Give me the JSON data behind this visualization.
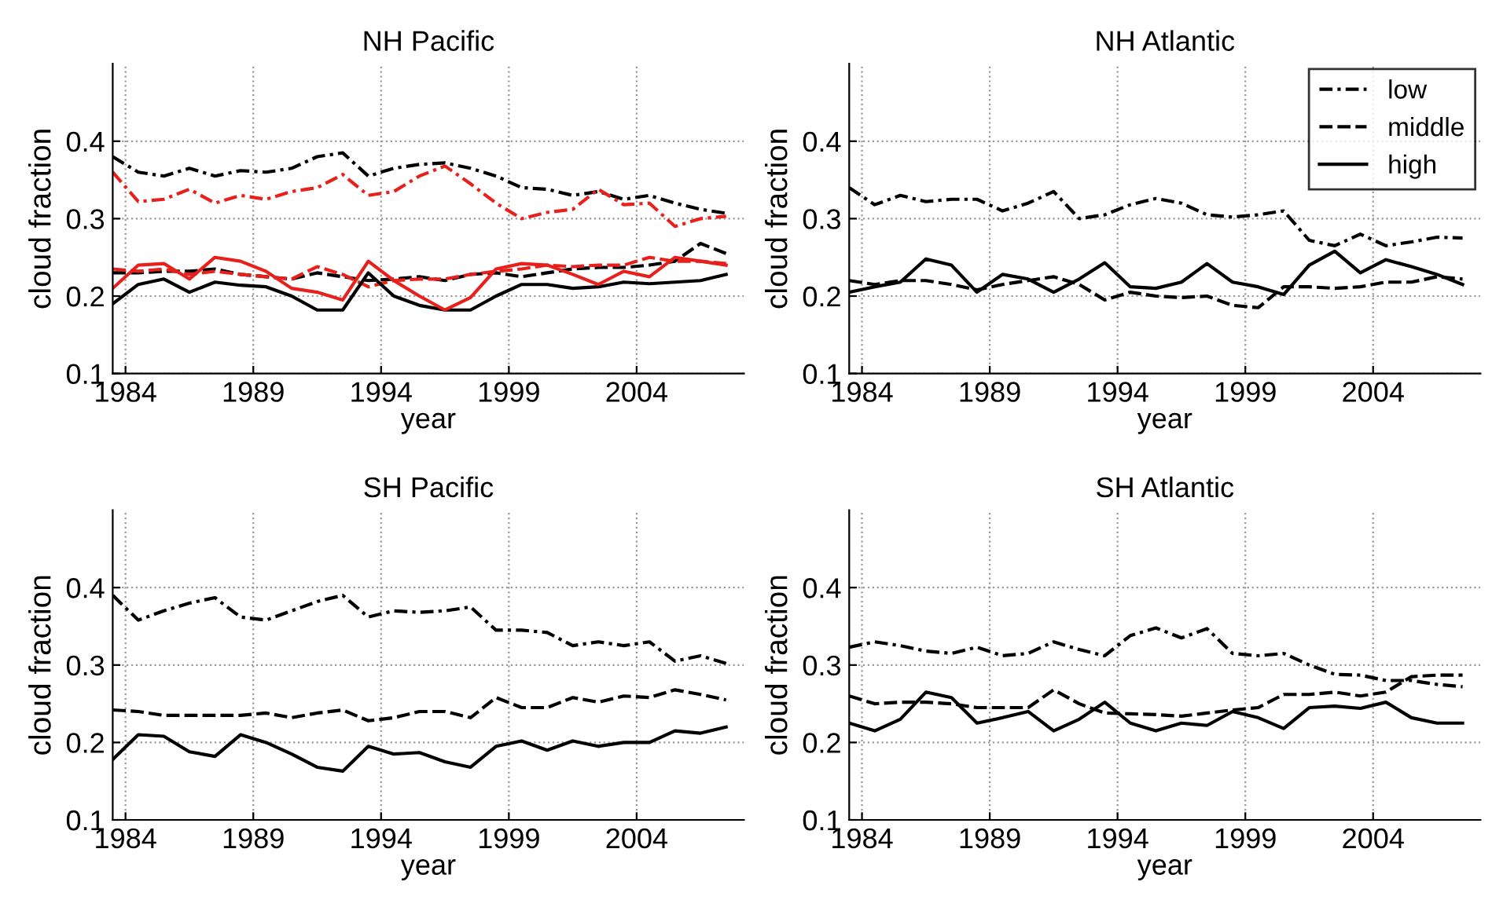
{
  "chart_data": [
    {
      "type": "line",
      "title": "NH Pacific",
      "xlabel": "year",
      "ylabel": "cloud fraction",
      "x": [
        1983.5,
        1984.5,
        1985.5,
        1986.5,
        1987.5,
        1988.5,
        1989.5,
        1990.5,
        1991.5,
        1992.5,
        1993.5,
        1994.5,
        1995.5,
        1996.5,
        1997.5,
        1998.5,
        1999.5,
        2000.5,
        2001.5,
        2002.5,
        2003.5,
        2004.5,
        2005.5,
        2006.5,
        2007.5
      ],
      "xlim": [
        1983.5,
        2008.2
      ],
      "xticks": [
        1984,
        1989,
        1994,
        1999,
        2004
      ],
      "ylim": [
        0.1,
        0.5
      ],
      "yticks": [
        0.1,
        0.2,
        0.3,
        0.4
      ],
      "grid": true,
      "legend": false,
      "series": [
        {
          "color": "#000000",
          "line_style": "dashdot",
          "values": [
            0.38,
            0.36,
            0.355,
            0.365,
            0.355,
            0.362,
            0.36,
            0.365,
            0.38,
            0.385,
            0.355,
            0.365,
            0.37,
            0.372,
            0.365,
            0.355,
            0.34,
            0.338,
            0.33,
            0.335,
            0.325,
            0.33,
            0.32,
            0.312,
            0.307
          ]
        },
        {
          "color": "#e8201c",
          "line_style": "dashdot",
          "values": [
            0.36,
            0.322,
            0.325,
            0.338,
            0.32,
            0.33,
            0.325,
            0.335,
            0.34,
            0.357,
            0.33,
            0.335,
            0.355,
            0.368,
            0.345,
            0.32,
            0.3,
            0.308,
            0.312,
            0.338,
            0.318,
            0.32,
            0.29,
            0.3,
            0.303
          ]
        },
        {
          "color": "#000000",
          "line_style": "dashed",
          "values": [
            0.23,
            0.23,
            0.232,
            0.232,
            0.235,
            0.228,
            0.225,
            0.222,
            0.23,
            0.225,
            0.22,
            0.222,
            0.225,
            0.22,
            0.228,
            0.23,
            0.225,
            0.23,
            0.235,
            0.237,
            0.237,
            0.24,
            0.245,
            0.268,
            0.255
          ]
        },
        {
          "color": "#e8201c",
          "line_style": "dashed",
          "values": [
            0.235,
            0.232,
            0.235,
            0.228,
            0.232,
            0.228,
            0.225,
            0.222,
            0.238,
            0.228,
            0.212,
            0.22,
            0.222,
            0.222,
            0.228,
            0.232,
            0.235,
            0.24,
            0.238,
            0.24,
            0.24,
            0.25,
            0.245,
            0.245,
            0.242
          ]
        },
        {
          "color": "#000000",
          "line_style": "solid",
          "values": [
            0.19,
            0.215,
            0.222,
            0.205,
            0.218,
            0.214,
            0.212,
            0.2,
            0.182,
            0.182,
            0.23,
            0.2,
            0.188,
            0.182,
            0.182,
            0.2,
            0.215,
            0.215,
            0.21,
            0.212,
            0.218,
            0.216,
            0.218,
            0.22,
            0.228
          ]
        },
        {
          "color": "#e8201c",
          "line_style": "solid",
          "values": [
            0.21,
            0.24,
            0.242,
            0.222,
            0.25,
            0.245,
            0.232,
            0.21,
            0.205,
            0.195,
            0.245,
            0.22,
            0.2,
            0.182,
            0.198,
            0.235,
            0.242,
            0.24,
            0.228,
            0.215,
            0.232,
            0.225,
            0.25,
            0.245,
            0.24
          ]
        }
      ]
    },
    {
      "type": "line",
      "title": "NH Atlantic",
      "xlabel": "year",
      "ylabel": "cloud fraction",
      "x": [
        1983.5,
        1984.5,
        1985.5,
        1986.5,
        1987.5,
        1988.5,
        1989.5,
        1990.5,
        1991.5,
        1992.5,
        1993.5,
        1994.5,
        1995.5,
        1996.5,
        1997.5,
        1998.5,
        1999.5,
        2000.5,
        2001.5,
        2002.5,
        2003.5,
        2004.5,
        2005.5,
        2006.5,
        2007.5
      ],
      "xlim": [
        1983.5,
        2008.2
      ],
      "xticks": [
        1984,
        1989,
        1994,
        1999,
        2004
      ],
      "ylim": [
        0.1,
        0.5
      ],
      "yticks": [
        0.1,
        0.2,
        0.3,
        0.4
      ],
      "grid": true,
      "legend": "top right",
      "series": [
        {
          "name": "low",
          "color": "#000000",
          "line_style": "dashdot",
          "values": [
            0.34,
            0.318,
            0.33,
            0.322,
            0.325,
            0.325,
            0.31,
            0.32,
            0.335,
            0.3,
            0.305,
            0.318,
            0.326,
            0.32,
            0.305,
            0.302,
            0.305,
            0.31,
            0.272,
            0.265,
            0.28,
            0.265,
            0.27,
            0.276,
            0.275
          ]
        },
        {
          "name": "middle",
          "color": "#000000",
          "line_style": "dashed",
          "values": [
            0.22,
            0.215,
            0.22,
            0.22,
            0.215,
            0.208,
            0.215,
            0.22,
            0.225,
            0.215,
            0.195,
            0.205,
            0.2,
            0.198,
            0.2,
            0.188,
            0.185,
            0.212,
            0.212,
            0.21,
            0.212,
            0.218,
            0.218,
            0.225,
            0.222
          ]
        },
        {
          "name": "high",
          "color": "#000000",
          "line_style": "solid",
          "values": [
            0.205,
            0.212,
            0.218,
            0.248,
            0.24,
            0.205,
            0.228,
            0.222,
            0.205,
            0.222,
            0.243,
            0.212,
            0.21,
            0.218,
            0.242,
            0.218,
            0.212,
            0.202,
            0.24,
            0.258,
            0.23,
            0.247,
            0.238,
            0.228,
            0.215
          ]
        }
      ]
    },
    {
      "type": "line",
      "title": "SH Pacific",
      "xlabel": "year",
      "ylabel": "cloud fraction",
      "x": [
        1983.5,
        1984.5,
        1985.5,
        1986.5,
        1987.5,
        1988.5,
        1989.5,
        1990.5,
        1991.5,
        1992.5,
        1993.5,
        1994.5,
        1995.5,
        1996.5,
        1997.5,
        1998.5,
        1999.5,
        2000.5,
        2001.5,
        2002.5,
        2003.5,
        2004.5,
        2005.5,
        2006.5,
        2007.5
      ],
      "xlim": [
        1983.5,
        2008.2
      ],
      "xticks": [
        1984,
        1989,
        1994,
        1999,
        2004
      ],
      "ylim": [
        0.1,
        0.5
      ],
      "yticks": [
        0.1,
        0.2,
        0.3,
        0.4
      ],
      "grid": true,
      "legend": false,
      "series": [
        {
          "color": "#000000",
          "line_style": "dashdot",
          "values": [
            0.39,
            0.358,
            0.37,
            0.38,
            0.387,
            0.362,
            0.358,
            0.37,
            0.382,
            0.39,
            0.362,
            0.37,
            0.368,
            0.37,
            0.375,
            0.345,
            0.345,
            0.342,
            0.325,
            0.33,
            0.325,
            0.33,
            0.305,
            0.312,
            0.302
          ]
        },
        {
          "color": "#000000",
          "line_style": "dashed",
          "values": [
            0.242,
            0.24,
            0.235,
            0.235,
            0.235,
            0.235,
            0.238,
            0.232,
            0.238,
            0.242,
            0.228,
            0.232,
            0.24,
            0.24,
            0.232,
            0.258,
            0.245,
            0.245,
            0.258,
            0.252,
            0.26,
            0.258,
            0.268,
            0.262,
            0.255
          ]
        },
        {
          "color": "#000000",
          "line_style": "solid",
          "values": [
            0.178,
            0.21,
            0.208,
            0.188,
            0.182,
            0.21,
            0.2,
            0.185,
            0.168,
            0.163,
            0.195,
            0.185,
            0.187,
            0.175,
            0.168,
            0.195,
            0.202,
            0.19,
            0.202,
            0.195,
            0.2,
            0.2,
            0.215,
            0.212,
            0.22
          ]
        }
      ]
    },
    {
      "type": "line",
      "title": "SH Atlantic",
      "xlabel": "year",
      "ylabel": "cloud fraction",
      "x": [
        1983.5,
        1984.5,
        1985.5,
        1986.5,
        1987.5,
        1988.5,
        1989.5,
        1990.5,
        1991.5,
        1992.5,
        1993.5,
        1994.5,
        1995.5,
        1996.5,
        1997.5,
        1998.5,
        1999.5,
        2000.5,
        2001.5,
        2002.5,
        2003.5,
        2004.5,
        2005.5,
        2006.5,
        2007.5
      ],
      "xlim": [
        1983.5,
        2008.2
      ],
      "xticks": [
        1984,
        1989,
        1994,
        1999,
        2004
      ],
      "ylim": [
        0.1,
        0.5
      ],
      "yticks": [
        0.1,
        0.2,
        0.3,
        0.4
      ],
      "grid": true,
      "legend": false,
      "series": [
        {
          "color": "#000000",
          "line_style": "dashdot",
          "values": [
            0.323,
            0.33,
            0.325,
            0.318,
            0.315,
            0.323,
            0.312,
            0.315,
            0.33,
            0.32,
            0.312,
            0.338,
            0.348,
            0.335,
            0.347,
            0.315,
            0.312,
            0.315,
            0.3,
            0.288,
            0.287,
            0.28,
            0.28,
            0.275,
            0.272
          ]
        },
        {
          "color": "#000000",
          "line_style": "dashed",
          "values": [
            0.26,
            0.25,
            0.252,
            0.252,
            0.25,
            0.245,
            0.245,
            0.245,
            0.268,
            0.25,
            0.238,
            0.237,
            0.236,
            0.234,
            0.238,
            0.242,
            0.245,
            0.262,
            0.262,
            0.265,
            0.26,
            0.265,
            0.285,
            0.287,
            0.287
          ]
        },
        {
          "color": "#000000",
          "line_style": "solid",
          "values": [
            0.225,
            0.215,
            0.23,
            0.265,
            0.258,
            0.225,
            0.232,
            0.24,
            0.215,
            0.23,
            0.252,
            0.225,
            0.215,
            0.225,
            0.222,
            0.24,
            0.232,
            0.218,
            0.245,
            0.247,
            0.244,
            0.252,
            0.232,
            0.225,
            0.225
          ]
        }
      ]
    }
  ]
}
